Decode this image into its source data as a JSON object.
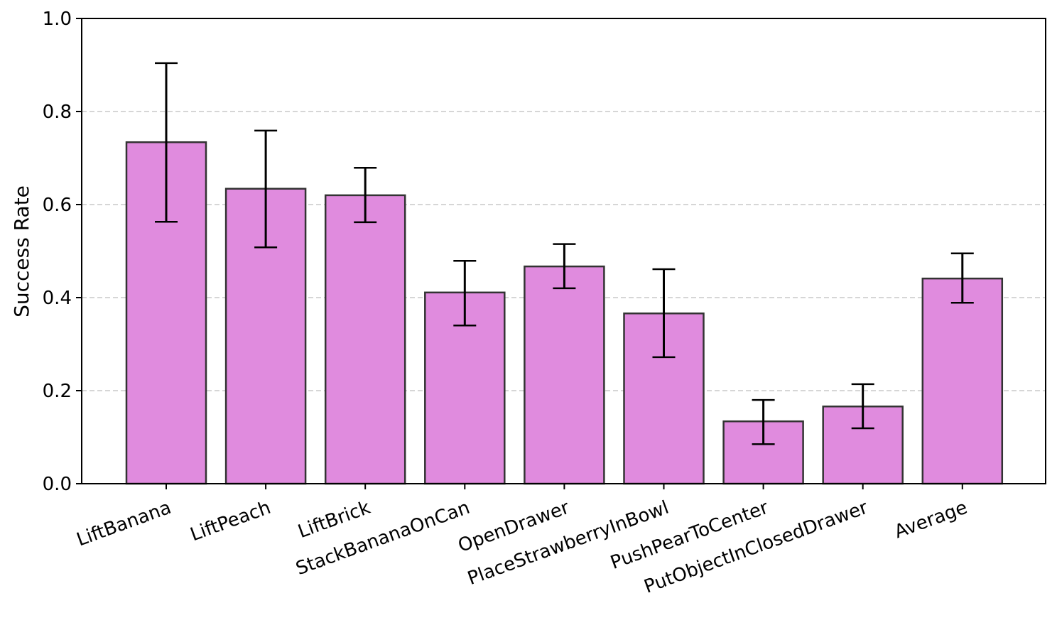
{
  "chart_data": {
    "type": "bar",
    "title": "",
    "xlabel": "",
    "ylabel": "Success Rate",
    "ylim": [
      0.0,
      1.0
    ],
    "yticks": [
      "0.0",
      "0.2",
      "0.4",
      "0.6",
      "0.8",
      "1.0"
    ],
    "grid": {
      "axis": "y",
      "style": "dashed",
      "color": "#c8c8c8"
    },
    "legend": null,
    "bar_color": "#e08bde",
    "bar_edge_color": "#333333",
    "error_bar_color": "#000000",
    "categories": [
      "LiftBanana",
      "LiftPeach",
      "LiftBrick",
      "StackBananaOnCan",
      "OpenDrawer",
      "PlaceStrawberryInBowl",
      "PushPearToCenter",
      "PutObjectInClosedDrawer",
      "Average"
    ],
    "values": [
      0.734,
      0.634,
      0.62,
      0.411,
      0.467,
      0.366,
      0.134,
      0.166,
      0.441
    ],
    "error_low": [
      0.563,
      0.508,
      0.562,
      0.34,
      0.42,
      0.272,
      0.085,
      0.119,
      0.389
    ],
    "error_high": [
      0.904,
      0.759,
      0.679,
      0.479,
      0.515,
      0.461,
      0.18,
      0.214,
      0.495
    ]
  }
}
